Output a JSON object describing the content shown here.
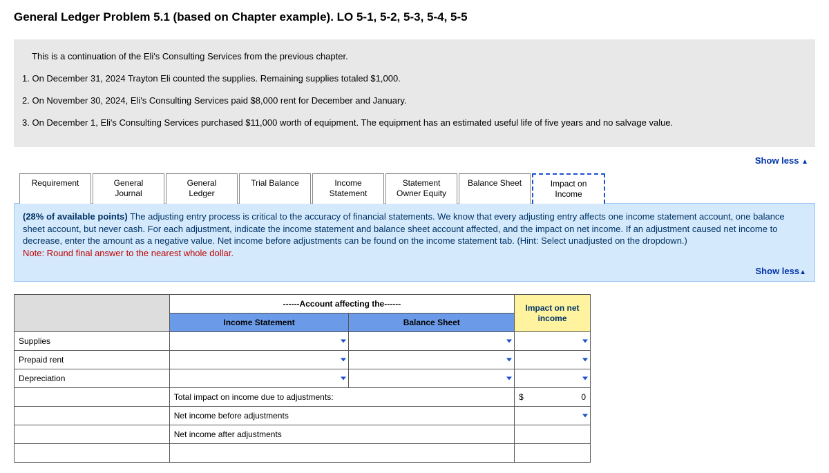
{
  "title": "General Ledger Problem 5.1 (based on Chapter example). LO 5-1, 5-2, 5-3, 5-4, 5-5",
  "problem": {
    "intro": "This is a continuation of the Eli's Consulting Services from the previous chapter.",
    "line1": "1. On December 31, 2024 Trayton Eli counted the supplies. Remaining supplies totaled $1,000.",
    "line2": "2. On November 30, 2024, Eli's Consulting Services paid $8,000 rent for December and January.",
    "line3": "3. On December 1, Eli's Consulting Services purchased $11,000 worth of equipment. The equipment has an estimated useful life of five years and no salvage value."
  },
  "showless": {
    "label": "Show less",
    "glyph": "▲"
  },
  "tabs": {
    "t0": "Requirement",
    "t1a": "General",
    "t1b": "Journal",
    "t2a": "General",
    "t2b": "Ledger",
    "t3": "Trial Balance",
    "t4a": "Income",
    "t4b": "Statement",
    "t5a": "Statement",
    "t5b": "Owner Equity",
    "t6": "Balance Sheet",
    "t7a": "Impact on",
    "t7b": "Income"
  },
  "panel": {
    "pct": "(28% of available points)",
    "body": " The adjusting entry process is critical to the accuracy of financial statements.  We know that every adjusting entry affects one income statement account, one balance sheet account, but never cash.  For each adjustment, indicate the income statement and balance sheet account affected, and the impact on net income.  If an adjustment caused net income to decrease, enter the amount as a negative value.  Net income before adjustments can be found on the income statement tab.  (Hint: Select unadjusted on the dropdown.)",
    "note": "Note: Round final answer to the nearest whole dollar.",
    "showless": "Show less",
    "glyph": "▲"
  },
  "sheet": {
    "hdr_account": "------Account affecting the------",
    "hdr_is": "Income Statement",
    "hdr_bs": "Balance Sheet",
    "hdr_impact1": "Impact on net",
    "hdr_impact2": "income",
    "row1": "Supplies",
    "row2": "Prepaid rent",
    "row3": "Depreciation",
    "sum1": "Total impact on income due to adjustments:",
    "sum2": "Net income before adjustments",
    "sum3": "Net income after adjustments",
    "dollar": "$",
    "zero": "0"
  }
}
